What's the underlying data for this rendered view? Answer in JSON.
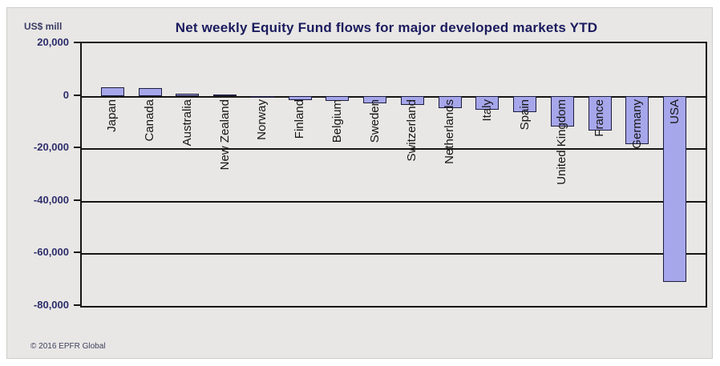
{
  "panel": {
    "copyright": "© 2016 EPFR Global"
  },
  "chart_data": {
    "type": "bar",
    "title": "Net weekly Equity Fund flows for major developed markets YTD",
    "unit_label": "US$ mill",
    "xlabel": "",
    "ylabel": "US$ mill",
    "categories": [
      "Japan",
      "Canada",
      "Australia",
      "New Zealand",
      "Norway",
      "Finland",
      "Belgium",
      "Sweden",
      "Switzerland",
      "Netherlands",
      "Italy",
      "Spain",
      "United Kingdom",
      "France",
      "Germany",
      "USA"
    ],
    "values": [
      3200,
      2800,
      900,
      200,
      -300,
      -1600,
      -1900,
      -2900,
      -3500,
      -4700,
      -5300,
      -6200,
      -11700,
      -13200,
      -18300,
      -71000
    ],
    "ylim": [
      -80000,
      20000
    ],
    "ytick_interval": 20000,
    "ytick_labels": [
      "20,000",
      "0",
      "-20,000",
      "-40,000",
      "-60,000",
      "-80,000"
    ],
    "grid": true,
    "legend": "none",
    "bar_color": "#a6a6eb",
    "bar_border_color": "#1d1d3d",
    "title_color": "#1b1b5e",
    "axis_label_color": "#2d2d6b"
  }
}
